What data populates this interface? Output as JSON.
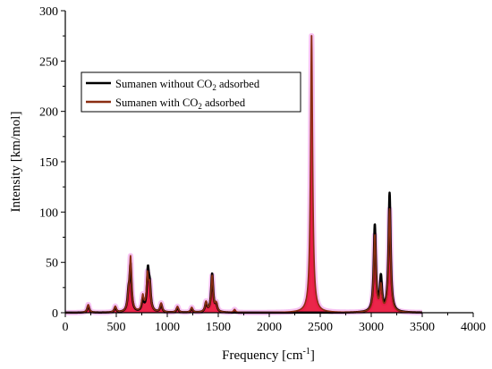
{
  "chart_data": {
    "type": "line",
    "xlabel": {
      "main": "Frequency [cm",
      "sup": "-1",
      "tail": "]"
    },
    "ylabel": "Intensity [km/mol]",
    "xlim": [
      0,
      4000
    ],
    "ylim": [
      0,
      300
    ],
    "x_ticks": [
      0,
      500,
      1000,
      1500,
      2000,
      2500,
      3000,
      3500,
      4000
    ],
    "y_ticks": [
      0,
      50,
      100,
      150,
      200,
      250,
      300
    ],
    "grid": false,
    "legend_position": "top-left",
    "peak_shape": "lorentzian",
    "series": [
      {
        "name": {
          "pre": "Sumanen without CO",
          "sub": "2",
          "post": " adsorbed"
        },
        "color": "#000000",
        "peaks": [
          {
            "x": 225,
            "y": 7
          },
          {
            "x": 490,
            "y": 5
          },
          {
            "x": 620,
            "y": 15
          },
          {
            "x": 640,
            "y": 45
          },
          {
            "x": 760,
            "y": 12
          },
          {
            "x": 810,
            "y": 39
          },
          {
            "x": 828,
            "y": 22
          },
          {
            "x": 940,
            "y": 8
          },
          {
            "x": 1100,
            "y": 5
          },
          {
            "x": 1240,
            "y": 4
          },
          {
            "x": 1380,
            "y": 9
          },
          {
            "x": 1440,
            "y": 38
          },
          {
            "x": 1480,
            "y": 7
          },
          {
            "x": 3035,
            "y": 86
          },
          {
            "x": 3095,
            "y": 33
          },
          {
            "x": 3180,
            "y": 118
          }
        ]
      },
      {
        "name": {
          "pre": "Sumanen with CO",
          "sub": "2",
          "post": " adsorbed"
        },
        "color": "#8b2e12",
        "fill": "#e8002a",
        "glow": "#f5b3ef",
        "peaks": [
          {
            "x": 225,
            "y": 8
          },
          {
            "x": 490,
            "y": 6
          },
          {
            "x": 620,
            "y": 12
          },
          {
            "x": 640,
            "y": 53
          },
          {
            "x": 760,
            "y": 15
          },
          {
            "x": 805,
            "y": 35
          },
          {
            "x": 828,
            "y": 24
          },
          {
            "x": 940,
            "y": 9
          },
          {
            "x": 1100,
            "y": 6
          },
          {
            "x": 1240,
            "y": 5
          },
          {
            "x": 1380,
            "y": 10
          },
          {
            "x": 1440,
            "y": 36
          },
          {
            "x": 1480,
            "y": 8
          },
          {
            "x": 1660,
            "y": 3
          },
          {
            "x": 2415,
            "y": 277
          },
          {
            "x": 3035,
            "y": 76
          },
          {
            "x": 3095,
            "y": 25
          },
          {
            "x": 3180,
            "y": 102
          }
        ]
      }
    ]
  }
}
